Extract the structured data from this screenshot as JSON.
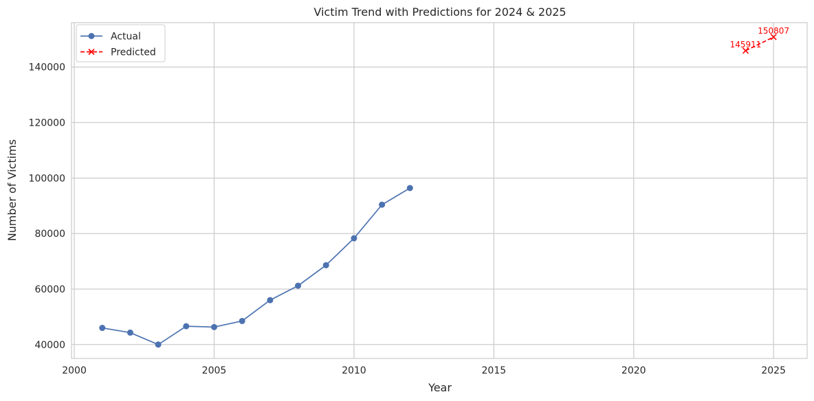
{
  "chart_data": {
    "type": "line",
    "title": "Victim Trend with Predictions for 2024 & 2025",
    "xlabel": "Year",
    "ylabel": "Number of Victims",
    "xlim": [
      1999.9,
      2026.2
    ],
    "ylim": [
      35000,
      156000
    ],
    "x_ticks": [
      2000,
      2005,
      2010,
      2015,
      2020,
      2025
    ],
    "y_ticks": [
      40000,
      60000,
      80000,
      100000,
      120000,
      140000
    ],
    "grid": true,
    "legend_position": "top-left",
    "series": [
      {
        "name": "Actual",
        "color": "#4c72b0",
        "marker": "circle",
        "line_style": "solid",
        "x": [
          2001,
          2002,
          2003,
          2004,
          2005,
          2006,
          2007,
          2008,
          2009,
          2010,
          2011,
          2012
        ],
        "y": [
          46000,
          44300,
          40000,
          46600,
          46300,
          48500,
          56000,
          61200,
          68600,
          78300,
          90400,
          96400
        ]
      },
      {
        "name": "Predicted",
        "color": "#ff0000",
        "marker": "x",
        "line_style": "dashed",
        "x": [
          2024,
          2025
        ],
        "y": [
          145911,
          150807
        ],
        "annotations": [
          "145911",
          "150807"
        ]
      }
    ]
  }
}
